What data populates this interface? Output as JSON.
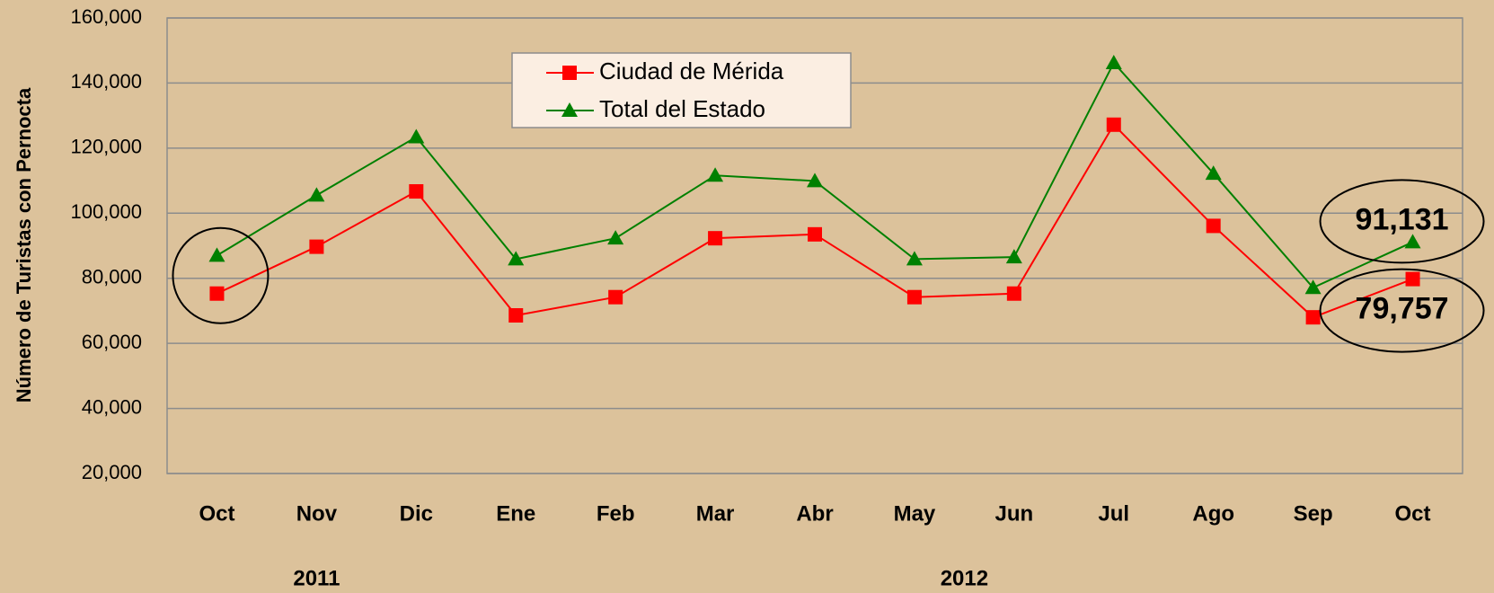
{
  "chart_data": {
    "type": "line",
    "y_label": "Número de Turistas con Pernocta",
    "categories": [
      "Oct",
      "Nov",
      "Dic",
      "Ene",
      "Feb",
      "Mar",
      "Abr",
      "May",
      "Jun",
      "Jul",
      "Ago",
      "Sep",
      "Oct"
    ],
    "x_groups": [
      "2011",
      "2012"
    ],
    "series": [
      {
        "name": "Ciudad de Mérida",
        "color": "#ff0000",
        "marker": "square",
        "values": [
          75300,
          89700,
          106700,
          68600,
          74200,
          92300,
          93500,
          74200,
          75300,
          127200,
          96100,
          68000,
          79757
        ],
        "value_labels": [
          null,
          null,
          null,
          null,
          null,
          null,
          null,
          null,
          null,
          null,
          null,
          null,
          "79,757"
        ]
      },
      {
        "name": "Total del Estado",
        "color": "#008000",
        "marker": "triangle",
        "values": [
          87000,
          105500,
          123400,
          85900,
          92300,
          111600,
          109900,
          85900,
          86500,
          146200,
          112200,
          77100,
          91131
        ],
        "value_labels": [
          null,
          null,
          null,
          null,
          null,
          null,
          null,
          null,
          null,
          null,
          null,
          null,
          "91,131"
        ]
      }
    ],
    "ylim": [
      20000,
      160000
    ],
    "yticks": [
      {
        "value": 20000,
        "label": "20,000"
      },
      {
        "value": 40000,
        "label": "40,000"
      },
      {
        "value": 60000,
        "label": "60,000"
      },
      {
        "value": 80000,
        "label": "80,000"
      },
      {
        "value": 100000,
        "label": "100,000"
      },
      {
        "value": 120000,
        "label": "120,000"
      },
      {
        "value": 140000,
        "label": "140,000"
      },
      {
        "value": 160000,
        "label": "160,000"
      }
    ],
    "grid": true,
    "legend": "top"
  }
}
